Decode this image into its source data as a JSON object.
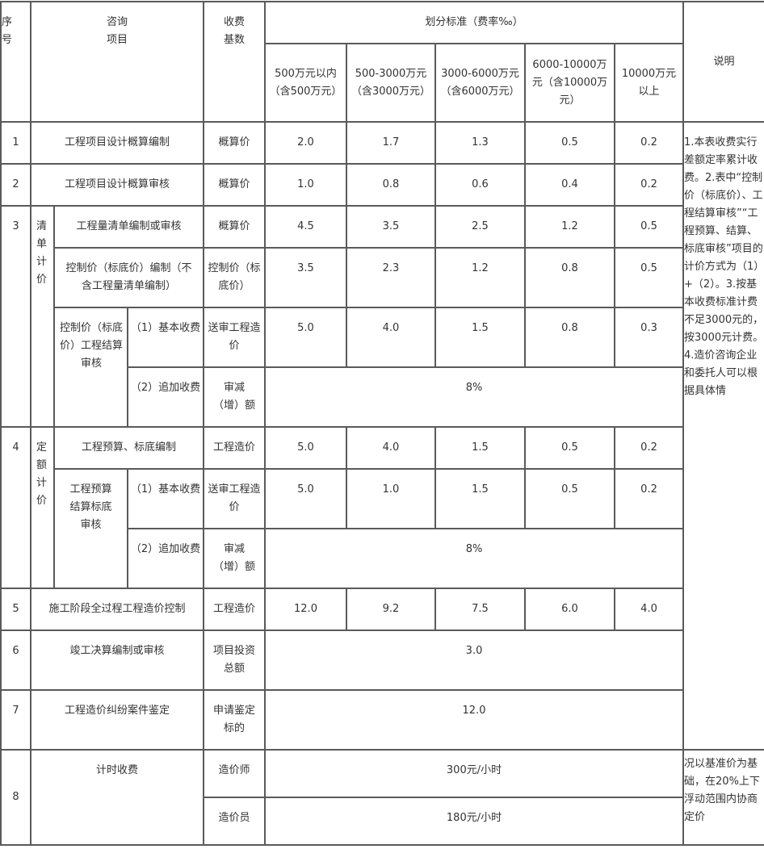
{
  "header": {
    "seq": "序号",
    "item": "咨询项目",
    "base": "收费基数",
    "criteria": "划分标准（费率‰）",
    "note": "说明",
    "tiers": [
      "500万元以内（含500万元）",
      "500-3000万元（含3000万元）",
      "3000-6000万元（含6000万元）",
      "6000-10000万元（含10000万元）",
      "10000万元以上"
    ]
  },
  "rows": [
    {
      "seq": "1",
      "item": "工程项目设计概算编制",
      "base": "概算价",
      "rates": [
        "2.0",
        "1.7",
        "1.3",
        "0.5",
        "0.2"
      ]
    },
    {
      "seq": "2",
      "item": "工程项目设计概算审核",
      "base": "概算价",
      "rates": [
        "1.0",
        "0.8",
        "0.6",
        "0.4",
        "0.2"
      ]
    },
    {
      "seq": "3",
      "group": "清单计价",
      "sub": [
        {
          "item": "工程量清单编制或审核",
          "base": "概算价",
          "rates": [
            "4.5",
            "3.5",
            "2.5",
            "1.2",
            "0.5"
          ]
        },
        {
          "item": "控制价（标底价）编制（不含工程量清单编制）",
          "base": "控制价（标底价）",
          "rates": [
            "3.5",
            "2.3",
            "1.2",
            "0.8",
            "0.5"
          ]
        },
        {
          "item": "控制价（标底价）工程结算审核",
          "part1": "（1）基本收费",
          "base1": "送审工程造价",
          "rates1": [
            "5.0",
            "4.0",
            "1.5",
            "0.8",
            "0.3"
          ],
          "part2": "（2）追加收费",
          "base2": "审减（增）额",
          "rate2": "8%"
        }
      ]
    },
    {
      "seq": "4",
      "group": "定额计价",
      "sub": [
        {
          "item": "工程预算、标底编制",
          "base": "工程造价",
          "rates": [
            "5.0",
            "4.0",
            "1.5",
            "0.5",
            "0.2"
          ]
        },
        {
          "item": "工程预算结算标底审核",
          "part1": "（1）基本收费",
          "base1": "送审工程造价",
          "rates1": [
            "5.0",
            "1.0",
            "1.5",
            "0.5",
            "0.2"
          ],
          "part2": "（2）追加收费",
          "base2": "审减（增）额",
          "rate2": "8%"
        }
      ]
    },
    {
      "seq": "5",
      "item": "施工阶段全过程工程造价控制",
      "base": "工程造价",
      "rates": [
        "12.0",
        "9.2",
        "7.5",
        "6.0",
        "4.0"
      ]
    },
    {
      "seq": "6",
      "item": "竣工决算编制或审核",
      "base": "项目投资总额",
      "rate": "3.0"
    },
    {
      "seq": "7",
      "item": "工程造价纠纷案件鉴定",
      "base": "申请鉴定标的",
      "rate": "12.0"
    },
    {
      "seq": "8",
      "item": "计时收费",
      "sub": [
        {
          "base": "造价师",
          "rate": "300元/小时"
        },
        {
          "base": "造价员",
          "rate": "180元/小时"
        }
      ]
    }
  ],
  "notes": {
    "main": "1.本表收费实行差额定率累计收费。2.表中“控制价（标底价）、工程结算审核”“工程预算、结算、标底审核”项目的计价方式为（1）+（2）。3.按基本收费标准计费不足3000元的，按3000元计费。4.造价咨询企业和委托人可以根据具体情",
    "cont": "况以基准价为基础，在20%上下浮动范围内协商定价"
  }
}
